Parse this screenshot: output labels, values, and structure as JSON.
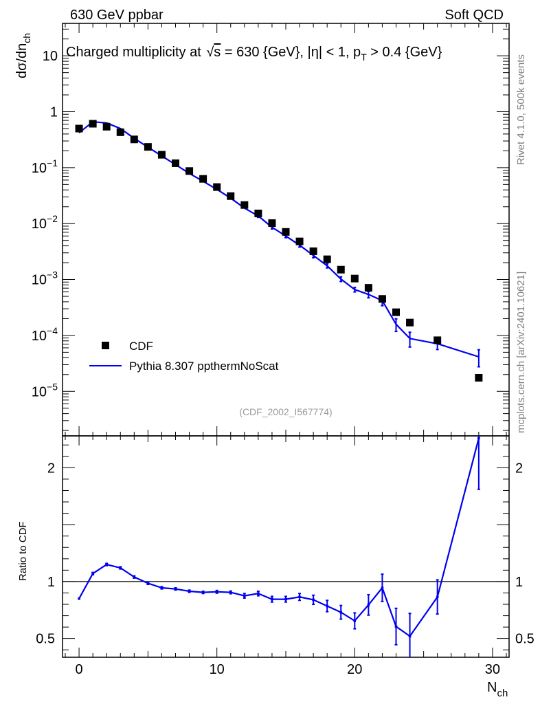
{
  "header": {
    "left": "630 GeV ppbar",
    "right": "Soft QCD"
  },
  "side_labels": {
    "version": "Rivet 4.1.0,  500k events",
    "source": "mcplots.cern.ch [arXiv:2401.10621]"
  },
  "analysis_id": "(CDF_2002_I567774)",
  "colors": {
    "mc": "#0000ee",
    "data": "#000000"
  },
  "chart_data": [
    {
      "type": "scatter",
      "title": "Charged multiplicity at √s = 630 {GeV}, |η| < 1, p_T > 0.4 {GeV}",
      "title_parts": {
        "a": "Charged multiplicity at ",
        "sqrt": "√",
        "s": "s",
        "b": " = 630 {GeV}, |η| < 1, p",
        "sub": "T",
        "c": " > 0.4 {GeV}"
      },
      "ylabel_main": "dσ/dn",
      "ylabel_sub": "ch",
      "yscale": "log",
      "xlim": [
        -1.2,
        31.2
      ],
      "ylim": [
        1.6e-06,
        38
      ],
      "y_ticks": [
        {
          "value": 10,
          "label": "10"
        },
        {
          "value": 1,
          "label": "1"
        },
        {
          "value": 0.1,
          "base": "10",
          "exp": "−1"
        },
        {
          "value": 0.01,
          "base": "10",
          "exp": "−2"
        },
        {
          "value": 0.001,
          "base": "10",
          "exp": "−3"
        },
        {
          "value": 0.0001,
          "base": "10",
          "exp": "−4"
        },
        {
          "value": 1e-05,
          "base": "10",
          "exp": "−5"
        }
      ],
      "legend": [
        {
          "label": "CDF",
          "marker": "square"
        },
        {
          "label": "Pythia 8.307 ppthermNoScat",
          "marker": "line"
        }
      ],
      "series": [
        {
          "name": "CDF",
          "x": [
            0,
            1,
            2,
            3,
            4,
            5,
            6,
            7,
            8,
            9,
            10,
            11,
            12,
            13,
            14,
            15,
            16,
            17,
            18,
            19,
            20,
            21,
            22,
            23,
            24,
            26,
            29
          ],
          "y": [
            0.5,
            0.61,
            0.54,
            0.43,
            0.32,
            0.235,
            0.17,
            0.12,
            0.087,
            0.063,
            0.045,
            0.031,
            0.0215,
            0.0152,
            0.0102,
            0.0071,
            0.0048,
            0.0032,
            0.0023,
            0.0015,
            0.00104,
            0.00071,
            0.00045,
            0.00026,
            0.00017,
            8.2e-05,
            1.75e-05
          ]
        },
        {
          "name": "Pythia 8.307 ppthermNoScat",
          "x": [
            0,
            1,
            2,
            3,
            4,
            5,
            6,
            7,
            8,
            9,
            10,
            11,
            12,
            13,
            14,
            15,
            16,
            17,
            18,
            19,
            20,
            21,
            22,
            23,
            24,
            26,
            29
          ],
          "y": [
            0.42,
            0.66,
            0.63,
            0.5,
            0.335,
            0.232,
            0.162,
            0.113,
            0.079,
            0.057,
            0.041,
            0.0285,
            0.0189,
            0.0137,
            0.0086,
            0.006,
            0.0041,
            0.0027,
            0.00176,
            0.00102,
            0.00066,
            0.00054,
            0.00042,
            0.000158,
            8.8e-05,
            7.1e-05,
            4.15e-05
          ],
          "err": [
            0,
            0,
            0,
            0,
            0,
            0,
            0,
            0,
            0,
            0,
            0,
            0,
            0,
            0.0008,
            0.0006,
            0.0004,
            0.0003,
            0.00025,
            0.00015,
            0.0001,
            6e-05,
            7e-05,
            8e-05,
            4e-05,
            2.6e-05,
            1.5e-05,
            1.4e-05
          ]
        }
      ]
    },
    {
      "type": "line",
      "ylabel": "Ratio to CDF",
      "xlabel_main": "N",
      "xlabel_sub": "ch",
      "xlim": [
        -1.2,
        31.2
      ],
      "ylim": [
        0.335,
        2.28
      ],
      "x_ticks": [
        0,
        10,
        20,
        30
      ],
      "y_ticks": [
        {
          "value": 0.5,
          "label": "0.5"
        },
        {
          "value": 1,
          "label": "1"
        },
        {
          "value": 2,
          "label": "2"
        }
      ],
      "reference_line": 1,
      "series": [
        {
          "name": "Pythia 8.307 ppthermNoScat",
          "x": [
            0,
            1,
            2,
            3,
            4,
            5,
            6,
            7,
            8,
            9,
            10,
            11,
            12,
            13,
            14,
            15,
            16,
            17,
            18,
            19,
            20,
            21,
            22,
            23,
            24,
            26,
            29
          ],
          "y": [
            0.85,
            1.07,
            1.15,
            1.12,
            1.04,
            0.985,
            0.945,
            0.935,
            0.915,
            0.905,
            0.91,
            0.905,
            0.875,
            0.895,
            0.845,
            0.845,
            0.865,
            0.84,
            0.785,
            0.73,
            0.655,
            0.795,
            0.945,
            0.605,
            0.52,
            0.865,
            2.26
          ],
          "err": [
            0,
            0.01,
            0.01,
            0.01,
            0.01,
            0.01,
            0.01,
            0.01,
            0.01,
            0.01,
            0.012,
            0.012,
            0.02,
            0.02,
            0.025,
            0.025,
            0.03,
            0.04,
            0.05,
            0.06,
            0.07,
            0.09,
            0.12,
            0.16,
            0.2,
            0.15,
            0.45
          ]
        }
      ]
    }
  ]
}
